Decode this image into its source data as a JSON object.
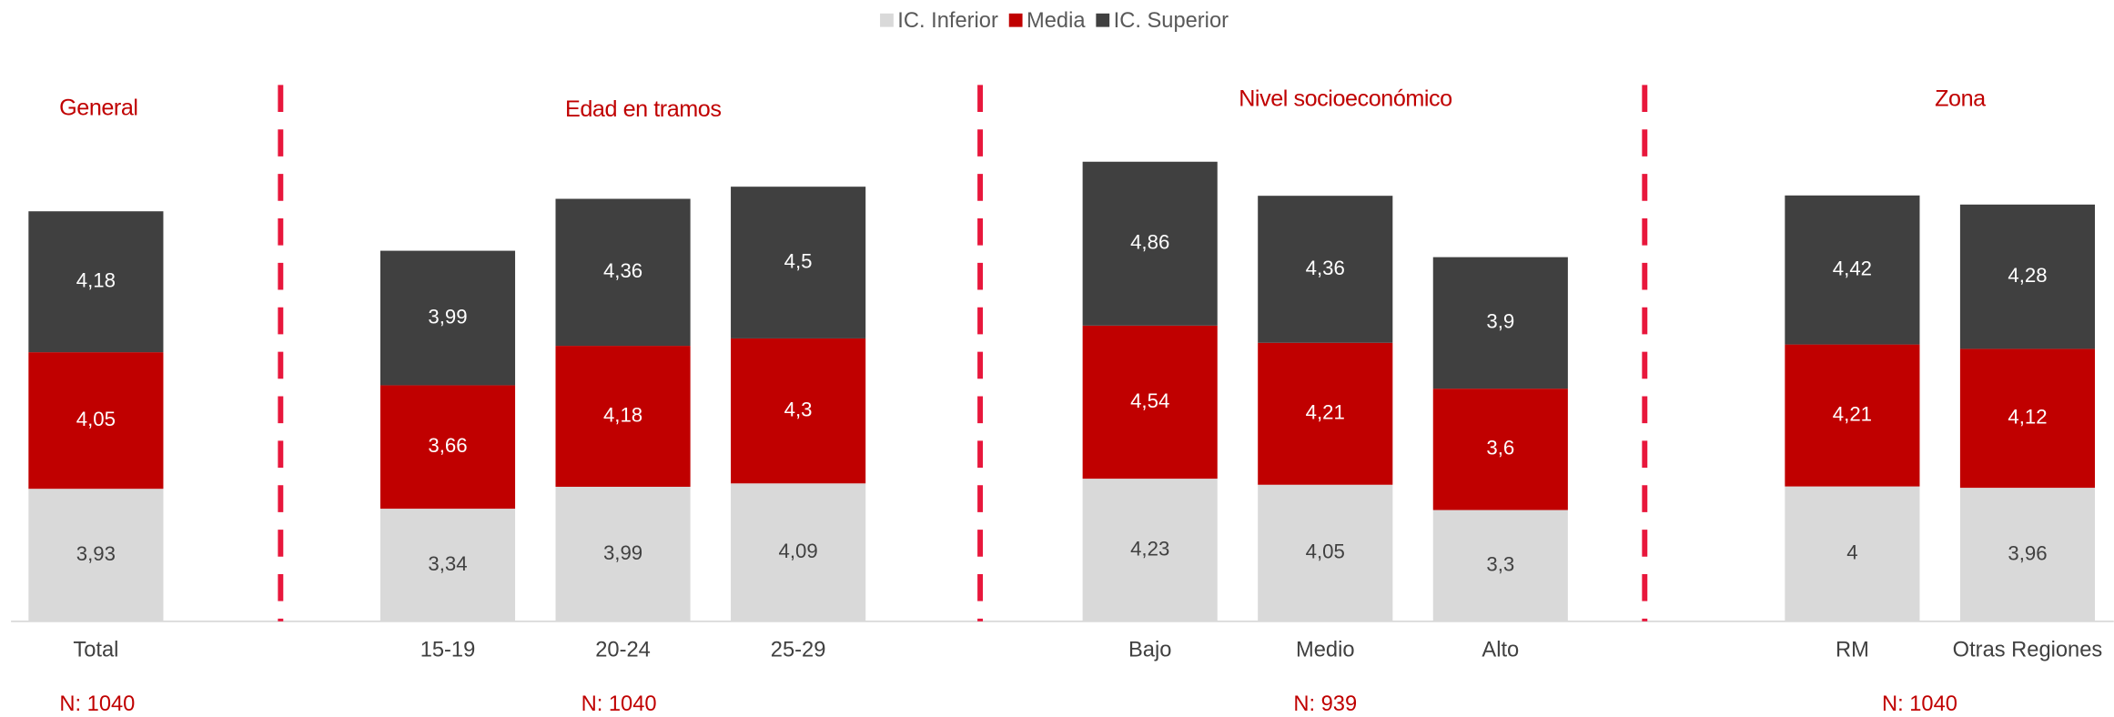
{
  "chart_data": {
    "type": "stacked_bar",
    "groups": [
      {
        "title": "General",
        "n_label": "N: 1040",
        "categories": [
          "Total"
        ]
      },
      {
        "title": "Edad en tramos",
        "n_label": "N: 1040",
        "categories": [
          "15-19",
          "20-24",
          "25-29"
        ]
      },
      {
        "title": "Nivel socioeconómico",
        "n_label": "N: 939",
        "categories": [
          "Bajo",
          "Medio",
          "Alto"
        ]
      },
      {
        "title": "Zona",
        "n_label": "N: 1040",
        "categories": [
          "RM",
          "Otras Regiones"
        ]
      }
    ],
    "series": [
      {
        "name": "IC. Inferior",
        "color": "#d9d9d9",
        "label_color": "#404040",
        "values": [
          3.93,
          3.34,
          3.99,
          4.09,
          4.23,
          4.05,
          3.3,
          4,
          3.96
        ],
        "value_labels": [
          "3,93",
          "3,34",
          "3,99",
          "4,09",
          "4,23",
          "4,05",
          "3,3",
          "4",
          "3,96"
        ]
      },
      {
        "name": "Media",
        "color": "#c00000",
        "label_color": "#ffffff",
        "values": [
          4.05,
          3.66,
          4.18,
          4.3,
          4.54,
          4.21,
          3.6,
          4.21,
          4.12
        ],
        "value_labels": [
          "4,05",
          "3,66",
          "4,18",
          "4,3",
          "4,54",
          "4,21",
          "3,6",
          "4,21",
          "4,12"
        ]
      },
      {
        "name": "IC. Superior",
        "color": "#404040",
        "label_color": "#ffffff",
        "values": [
          4.18,
          3.99,
          4.36,
          4.5,
          4.86,
          4.36,
          3.9,
          4.42,
          4.28
        ],
        "value_labels": [
          "4,18",
          "3,99",
          "4,36",
          "4,5",
          "4,86",
          "4,36",
          "3,9",
          "4,42",
          "4,28"
        ]
      }
    ],
    "legend": "top",
    "divider_color": "#e8173c"
  }
}
